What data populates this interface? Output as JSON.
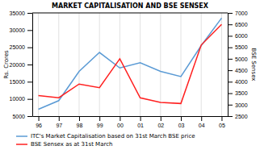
{
  "chart_data": {
    "type": "line",
    "title": "MARKET CAPITALISATION AND BSE SENSEX",
    "categories": [
      "96",
      "97",
      "98",
      "99",
      "00",
      "01",
      "02",
      "03",
      "04",
      "05"
    ],
    "series": [
      {
        "name": "ITC's Market Capitalisation based on 31st March BSE price",
        "color": "#5b9bd5",
        "values": [
          7000,
          9500,
          18000,
          23500,
          19000,
          20500,
          18000,
          16500,
          25500,
          33500
        ]
      },
      {
        "name": "BSE Sensex as at 31st March",
        "color": "#ff2020",
        "axis": "y2",
        "values": [
          3400,
          3300,
          3900,
          3740,
          5000,
          3300,
          3100,
          3050,
          5600,
          6500
        ]
      }
    ],
    "y_label": "Rs. Crores",
    "y2_label": "BSE Sensex",
    "ylim": [
      5000,
      35000
    ],
    "yticks": [
      5000,
      10000,
      15000,
      20000,
      25000,
      30000,
      35000
    ],
    "y2lim": [
      2500,
      7000
    ],
    "y2ticks": [
      2500,
      3000,
      3500,
      4000,
      4500,
      5000,
      5500,
      6000,
      6500,
      7000
    ],
    "grid": true,
    "legend": "bottom"
  }
}
